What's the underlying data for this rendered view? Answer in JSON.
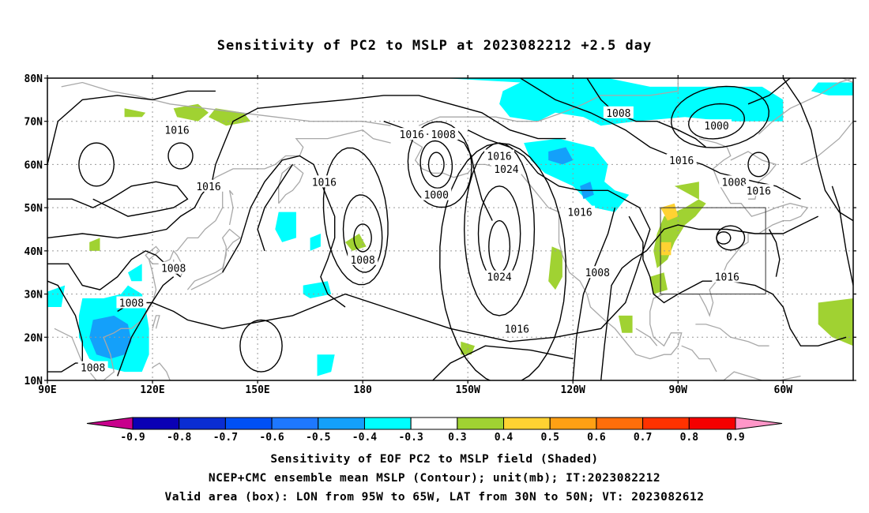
{
  "title": "Sensitivity of PC2 to MSLP at 2023082212 +2.5 day",
  "axes": {
    "lat_labels": [
      "80N",
      "70N",
      "60N",
      "50N",
      "40N",
      "30N",
      "20N",
      "10N"
    ],
    "lon_labels": [
      "90E",
      "120E",
      "150E",
      "180",
      "150W",
      "120W",
      "90W",
      "60W"
    ]
  },
  "contour_labels": [
    {
      "text": "1016",
      "lon": 127,
      "lat": 68
    },
    {
      "text": "1016",
      "lon": 136,
      "lat": 55
    },
    {
      "text": "1008",
      "lon": 126,
      "lat": 36
    },
    {
      "text": "1008",
      "lon": 114,
      "lat": 28
    },
    {
      "text": "1008",
      "lon": 103,
      "lat": 13
    },
    {
      "text": "1016",
      "lon": 169,
      "lat": 56
    },
    {
      "text": "1016",
      "lon": 194,
      "lat": 67
    },
    {
      "text": "1008",
      "lon": 203,
      "lat": 67
    },
    {
      "text": "1000",
      "lon": 201,
      "lat": 53
    },
    {
      "text": "1008",
      "lon": 180,
      "lat": 38
    },
    {
      "text": "1016",
      "lon": 219,
      "lat": 62
    },
    {
      "text": "1024",
      "lon": 221,
      "lat": 59
    },
    {
      "text": "1024",
      "lon": 219,
      "lat": 34
    },
    {
      "text": "1016",
      "lon": 224,
      "lat": 22
    },
    {
      "text": "1016",
      "lon": 242,
      "lat": 49
    },
    {
      "text": "1008",
      "lon": 247,
      "lat": 35
    },
    {
      "text": "1008",
      "lon": 253,
      "lat": 72
    },
    {
      "text": "1000",
      "lon": 281,
      "lat": 69
    },
    {
      "text": "1016",
      "lon": 271,
      "lat": 61
    },
    {
      "text": "1008",
      "lon": 286,
      "lat": 56
    },
    {
      "text": "1016",
      "lon": 293,
      "lat": 54
    },
    {
      "text": "1016",
      "lon": 284,
      "lat": 34
    }
  ],
  "colorbar": {
    "labels": [
      "-0.9",
      "-0.8",
      "-0.7",
      "-0.6",
      "-0.5",
      "-0.4",
      "-0.3",
      "0.3",
      "0.4",
      "0.5",
      "0.6",
      "0.7",
      "0.8",
      "0.9"
    ],
    "colors": [
      "#0a00b4",
      "#0a2dd2",
      "#0050f5",
      "#1e78ff",
      "#14a0fa",
      "#00ffff",
      "#ffffff",
      "#a0d232",
      "#ffd232",
      "#ffa014",
      "#ff6e0a",
      "#ff3200",
      "#f50000"
    ],
    "low_end_color": "#c8008c",
    "high_end_color": "#ff96c8"
  },
  "caption": {
    "line1": "Sensitivity of EOF PC2 to MSLP field (Shaded)",
    "line2": "NCEP+CMC ensemble mean MSLP (Contour); unit(mb); IT:2023082212",
    "line3": "Valid area (box): LON from 95W to 65W, LAT from 30N to 50N; VT: 2023082612"
  },
  "valid_box": {
    "lon_min": 265,
    "lon_max": 295,
    "lat_min": 30,
    "lat_max": 50
  }
}
